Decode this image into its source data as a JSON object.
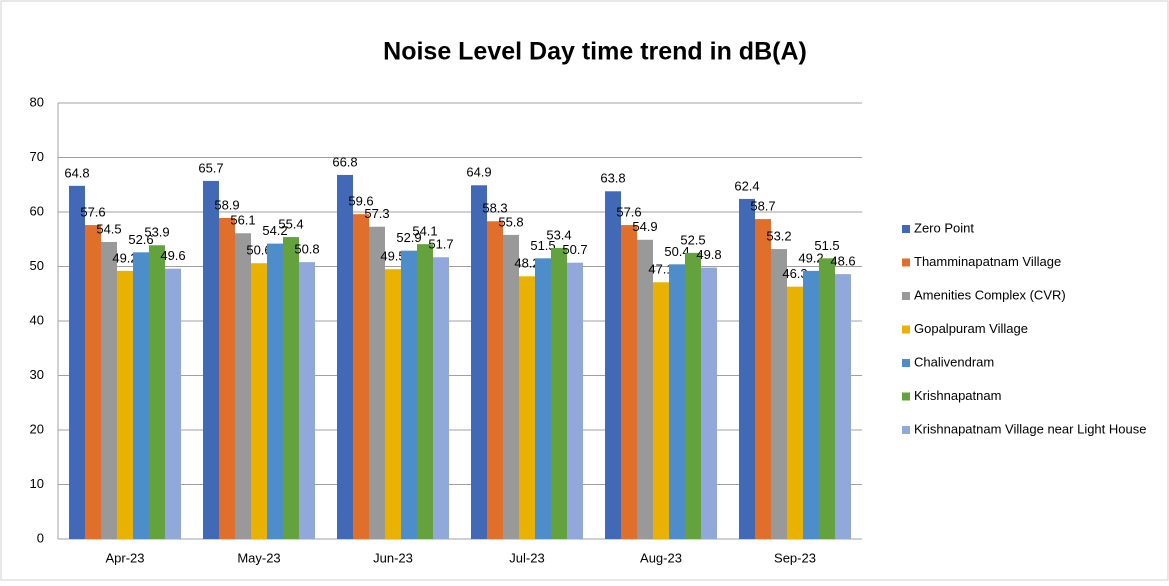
{
  "chart_data": {
    "type": "bar",
    "title": "Noise Level Day time trend in dB(A)",
    "categories": [
      "Apr-23",
      "May-23",
      "Jun-23",
      "Jul-23",
      "Aug-23",
      "Sep-23"
    ],
    "series": [
      {
        "name": "Zero Point",
        "color": "#4169b5",
        "values": [
          64.8,
          65.7,
          66.8,
          64.9,
          63.8,
          62.4
        ]
      },
      {
        "name": "Thamminapatnam Village",
        "color": "#e06f2c",
        "values": [
          57.6,
          58.9,
          59.6,
          58.3,
          57.6,
          58.7
        ]
      },
      {
        "name": "Amenities Complex (CVR)",
        "color": "#999999",
        "values": [
          54.5,
          56.1,
          57.3,
          55.8,
          54.9,
          53.2
        ]
      },
      {
        "name": "Gopalpuram Village",
        "color": "#e9b102",
        "values": [
          49.2,
          50.6,
          49.5,
          48.2,
          47.1,
          46.3
        ]
      },
      {
        "name": "Chalivendram",
        "color": "#4d8dc9",
        "values": [
          52.6,
          54.2,
          52.9,
          51.5,
          50.4,
          49.2
        ]
      },
      {
        "name": "Krishnapatnam",
        "color": "#64a23d",
        "values": [
          53.9,
          55.4,
          54.1,
          53.4,
          52.5,
          51.5
        ]
      },
      {
        "name": "Krishnapatnam Village near Light House",
        "color": "#91a9da",
        "values": [
          49.6,
          50.8,
          51.7,
          50.7,
          49.8,
          48.6
        ]
      }
    ],
    "ylim": [
      0,
      80
    ],
    "yticks": [
      0,
      10,
      20,
      30,
      40,
      50,
      60,
      70,
      80
    ],
    "grid": true,
    "legend": "right"
  }
}
